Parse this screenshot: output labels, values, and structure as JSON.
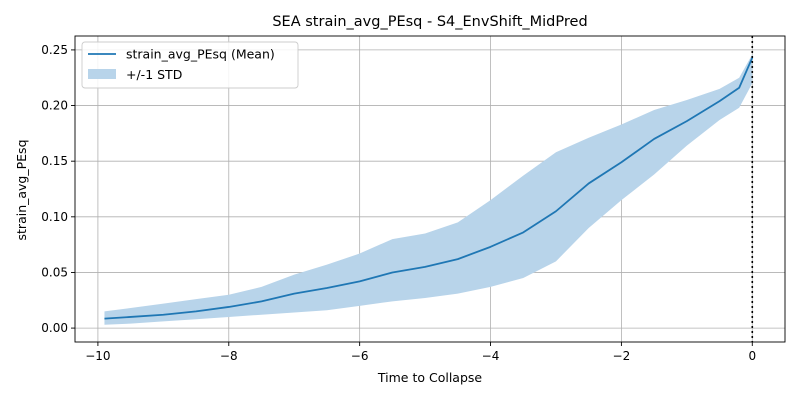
{
  "chart_data": {
    "type": "line",
    "title": "SEA strain_avg_PEsq - S4_EnvShift_MidPred",
    "xlabel": "Time to Collapse",
    "ylabel": "strain_avg_PEsq",
    "xlim": [
      -10.35,
      0.5
    ],
    "ylim": [
      -0.0125,
      0.2625
    ],
    "xticks": [
      -10,
      -8,
      -6,
      -4,
      -2,
      0
    ],
    "xtick_labels": [
      "−10",
      "−8",
      "−6",
      "−4",
      "−2",
      "0"
    ],
    "yticks": [
      0.0,
      0.05,
      0.1,
      0.15,
      0.2,
      0.25
    ],
    "ytick_labels": [
      "0.00",
      "0.05",
      "0.10",
      "0.15",
      "0.20",
      "0.25"
    ],
    "grid": true,
    "legend_position": "top-left",
    "series": [
      {
        "name": "strain_avg_PEsq (Mean)",
        "color": "#1f77b4",
        "x": [
          -9.9,
          -9.5,
          -9.0,
          -8.5,
          -8.0,
          -7.5,
          -7.0,
          -6.5,
          -6.0,
          -5.5,
          -5.0,
          -4.5,
          -4.0,
          -3.5,
          -3.0,
          -2.5,
          -2.0,
          -1.5,
          -1.0,
          -0.5,
          -0.2,
          0.0
        ],
        "values": [
          0.0085,
          0.01,
          0.012,
          0.015,
          0.019,
          0.024,
          0.031,
          0.036,
          0.042,
          0.05,
          0.055,
          0.062,
          0.073,
          0.086,
          0.105,
          0.13,
          0.149,
          0.17,
          0.186,
          0.204,
          0.216,
          0.243
        ]
      },
      {
        "name": "+/-1 STD",
        "color": "#b8d4ea",
        "x": [
          -9.9,
          -9.5,
          -9.0,
          -8.5,
          -8.0,
          -7.5,
          -7.0,
          -6.5,
          -6.0,
          -5.5,
          -5.0,
          -4.5,
          -4.0,
          -3.5,
          -3.0,
          -2.5,
          -2.0,
          -1.5,
          -1.0,
          -0.5,
          -0.2,
          0.0
        ],
        "lower": [
          0.003,
          0.004,
          0.006,
          0.008,
          0.01,
          0.012,
          0.014,
          0.016,
          0.02,
          0.024,
          0.027,
          0.031,
          0.037,
          0.045,
          0.06,
          0.09,
          0.115,
          0.138,
          0.164,
          0.187,
          0.198,
          0.22
        ],
        "upper": [
          0.015,
          0.018,
          0.022,
          0.026,
          0.03,
          0.037,
          0.048,
          0.057,
          0.067,
          0.08,
          0.085,
          0.095,
          0.115,
          0.137,
          0.158,
          0.171,
          0.183,
          0.196,
          0.205,
          0.215,
          0.225,
          0.246
        ]
      }
    ],
    "vline": {
      "x": 0,
      "style": "dotted",
      "color": "#000000"
    }
  }
}
